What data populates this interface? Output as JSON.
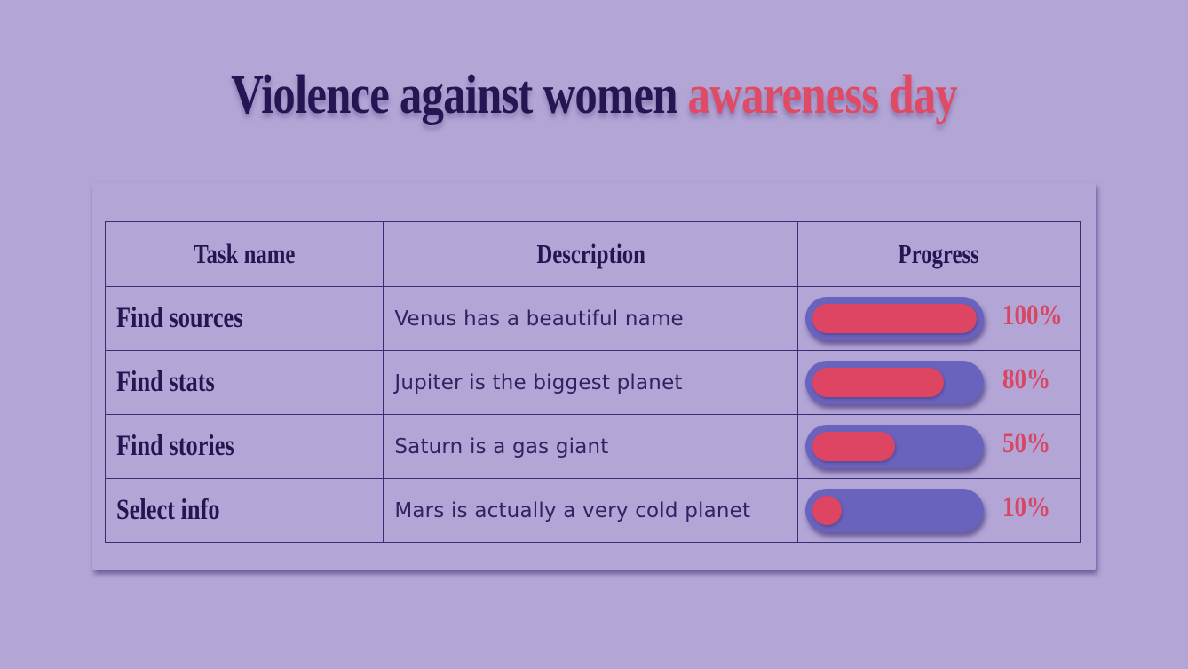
{
  "title": {
    "part1": "Violence against women ",
    "part2": "awareness day"
  },
  "colors": {
    "background": "#b3a6d6",
    "title_dark": "#231652",
    "accent": "#e04a64",
    "bar_track": "#6a63bd",
    "bar_fill": "#dd4563",
    "border": "#3a2d73"
  },
  "table": {
    "headers": [
      "Task name",
      "Description",
      "Progress"
    ],
    "rows": [
      {
        "task": "Find sources",
        "description": "Venus has a beautiful name",
        "progress": 100,
        "progress_label": "100%"
      },
      {
        "task": "Find stats",
        "description": "Jupiter is the biggest planet",
        "progress": 80,
        "progress_label": "80%"
      },
      {
        "task": "Find stories",
        "description": "Saturn is a gas giant",
        "progress": 50,
        "progress_label": "50%"
      },
      {
        "task": "Select info",
        "description": "Mars is actually a very cold planet",
        "progress": 10,
        "progress_label": "10%"
      }
    ]
  }
}
